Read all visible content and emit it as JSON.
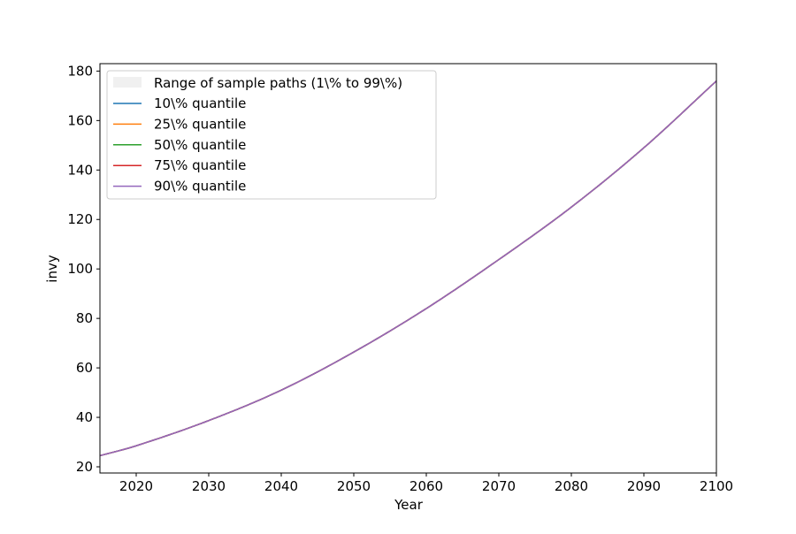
{
  "chart_data": {
    "type": "line",
    "title": "",
    "xlabel": "Year",
    "ylabel": "invy",
    "xlim": [
      2015,
      2100
    ],
    "ylim": [
      17.5,
      183
    ],
    "xticks": [
      2020,
      2030,
      2040,
      2050,
      2060,
      2070,
      2080,
      2090,
      2100
    ],
    "yticks": [
      20,
      40,
      60,
      80,
      100,
      120,
      140,
      160,
      180
    ],
    "grid": false,
    "legend_position": "top-left",
    "band": {
      "name": "Range of sample paths (1\\% to 99\\%)",
      "color": "#f0f0f0"
    },
    "x": [
      2015,
      2020,
      2030,
      2040,
      2050,
      2060,
      2070,
      2080,
      2090,
      2100
    ],
    "series": [
      {
        "name": "10\\% quantile",
        "color": "#1f77b4",
        "values": [
          24.5,
          28.5,
          38.7,
          51.0,
          66.4,
          84.0,
          103.8,
          125.0,
          149.0,
          176.0
        ]
      },
      {
        "name": "25\\% quantile",
        "color": "#ff7f0e",
        "values": [
          24.5,
          28.5,
          38.7,
          51.0,
          66.4,
          84.0,
          103.8,
          125.0,
          149.0,
          176.0
        ]
      },
      {
        "name": "50\\% quantile",
        "color": "#2ca02c",
        "values": [
          24.5,
          28.5,
          38.7,
          51.0,
          66.4,
          84.0,
          103.8,
          125.0,
          149.0,
          176.0
        ]
      },
      {
        "name": "75\\% quantile",
        "color": "#d62728",
        "values": [
          24.5,
          28.5,
          38.7,
          51.0,
          66.4,
          84.0,
          103.8,
          125.0,
          149.0,
          176.0
        ]
      },
      {
        "name": "90\\% quantile",
        "color": "#9467bd",
        "values": [
          24.5,
          28.5,
          38.7,
          51.0,
          66.4,
          84.0,
          103.8,
          125.0,
          149.0,
          176.0
        ]
      }
    ]
  }
}
